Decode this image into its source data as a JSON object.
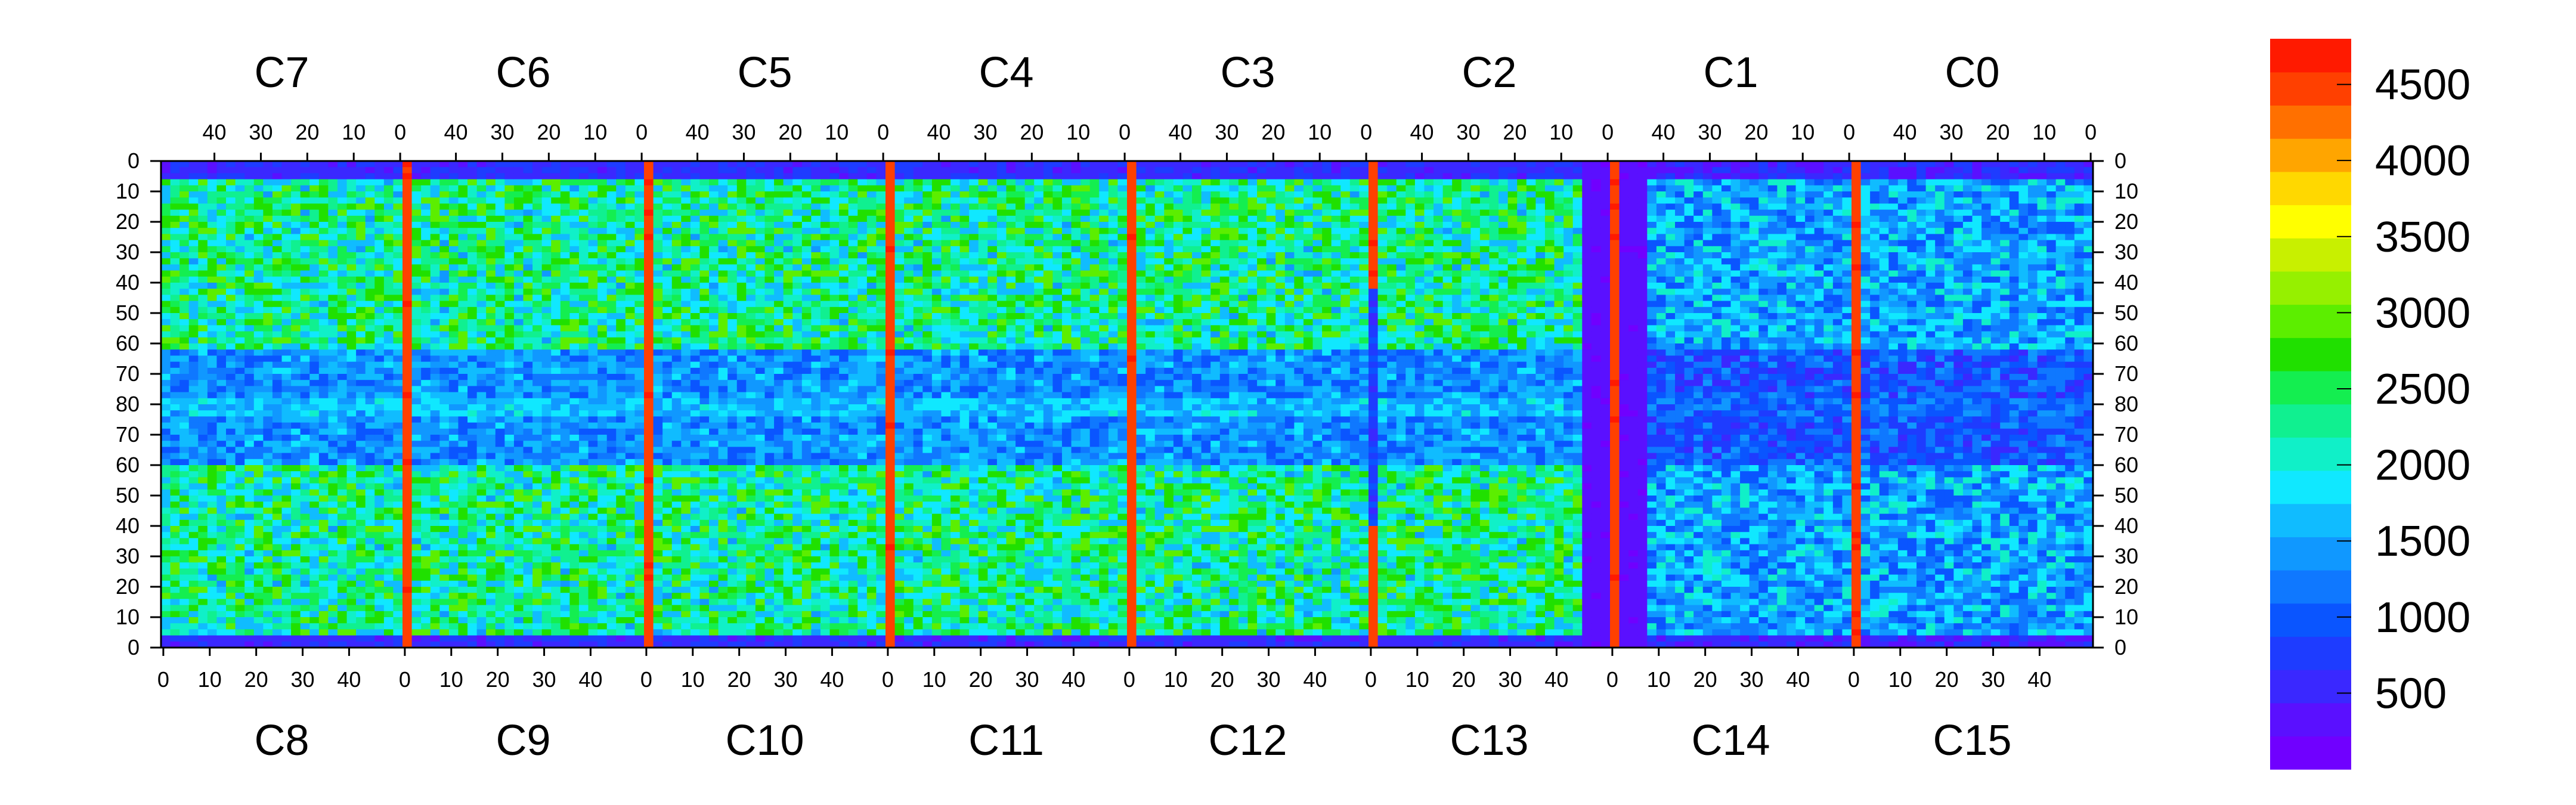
{
  "chart_data": {
    "type": "heatmap",
    "title": "",
    "xlabel": "",
    "ylabel": "",
    "top_chips": [
      "C7",
      "C6",
      "C5",
      "C4",
      "C3",
      "C2",
      "C1",
      "C0"
    ],
    "bottom_chips": [
      "C8",
      "C9",
      "C10",
      "C11",
      "C12",
      "C13",
      "C14",
      "C15"
    ],
    "top_x_ticks": [
      "40",
      "30",
      "20",
      "10",
      "0"
    ],
    "bottom_x_ticks": [
      "0",
      "10",
      "20",
      "30",
      "40"
    ],
    "y_ticks": [
      "0",
      "10",
      "20",
      "30",
      "40",
      "50",
      "60",
      "70",
      "80",
      "70",
      "60",
      "50",
      "40",
      "30",
      "20",
      "10",
      "0"
    ],
    "chip_columns": 52,
    "rows_per_half": 80,
    "colorbar": {
      "range": [
        0,
        4800
      ],
      "tick_labels": [
        "500",
        "1000",
        "1500",
        "2000",
        "2500",
        "3000",
        "3500",
        "4000",
        "4500"
      ],
      "tick_values": [
        500,
        1000,
        1500,
        2000,
        2500,
        3000,
        3500,
        4000,
        4500
      ],
      "colors": [
        "#7000ff",
        "#5a10ff",
        "#3a28ff",
        "#1e3cff",
        "#0a55ff",
        "#0f78ff",
        "#1098ff",
        "#10bcff",
        "#10e8ff",
        "#10f0c8",
        "#10f090",
        "#14ee50",
        "#20e000",
        "#5cee00",
        "#96f000",
        "#c8f000",
        "#ffff00",
        "#ffd800",
        "#ffa500",
        "#ff7000",
        "#ff4000",
        "#ff1a00"
      ]
    },
    "description_values": {
      "dominant_range_active_area": [
        1500,
        3000
      ],
      "low_region_value": 200,
      "boundary_column_value": 4500
    }
  }
}
